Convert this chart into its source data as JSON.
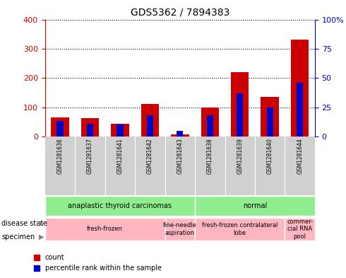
{
  "title": "GDS5362 / 7894383",
  "samples": [
    "GSM1281636",
    "GSM1281637",
    "GSM1281641",
    "GSM1281642",
    "GSM1281643",
    "GSM1281638",
    "GSM1281639",
    "GSM1281640",
    "GSM1281644"
  ],
  "count_values": [
    65,
    62,
    43,
    110,
    8,
    98,
    220,
    135,
    330
  ],
  "percentile_values": [
    13,
    11,
    10,
    18,
    5,
    18,
    37,
    25,
    46
  ],
  "left_ylim": [
    0,
    400
  ],
  "right_ylim": [
    0,
    100
  ],
  "left_yticks": [
    0,
    100,
    200,
    300,
    400
  ],
  "right_yticks": [
    0,
    25,
    50,
    75,
    100
  ],
  "right_yticklabels": [
    "0",
    "25",
    "50",
    "75",
    "100%"
  ],
  "bar_color_count": "#CC0000",
  "bar_color_percentile": "#0000CC",
  "disease_state_spans": [
    [
      0,
      5,
      "anaplastic thyroid carcinomas",
      "#90EE90"
    ],
    [
      5,
      9,
      "normal",
      "#90EE90"
    ]
  ],
  "specimen_spans": [
    [
      0,
      4,
      "fresh-frozen",
      "#FFB6C1"
    ],
    [
      4,
      5,
      "fine-needle\naspiration",
      "#FFB6C1"
    ],
    [
      5,
      8,
      "fresh-frozen contralateral\nlobe",
      "#FFB6C1"
    ],
    [
      8,
      9,
      "commer-\ncial RNA\npool",
      "#FFB6C1"
    ]
  ],
  "legend_count_label": "count",
  "legend_percentile_label": "percentile rank within the sample"
}
